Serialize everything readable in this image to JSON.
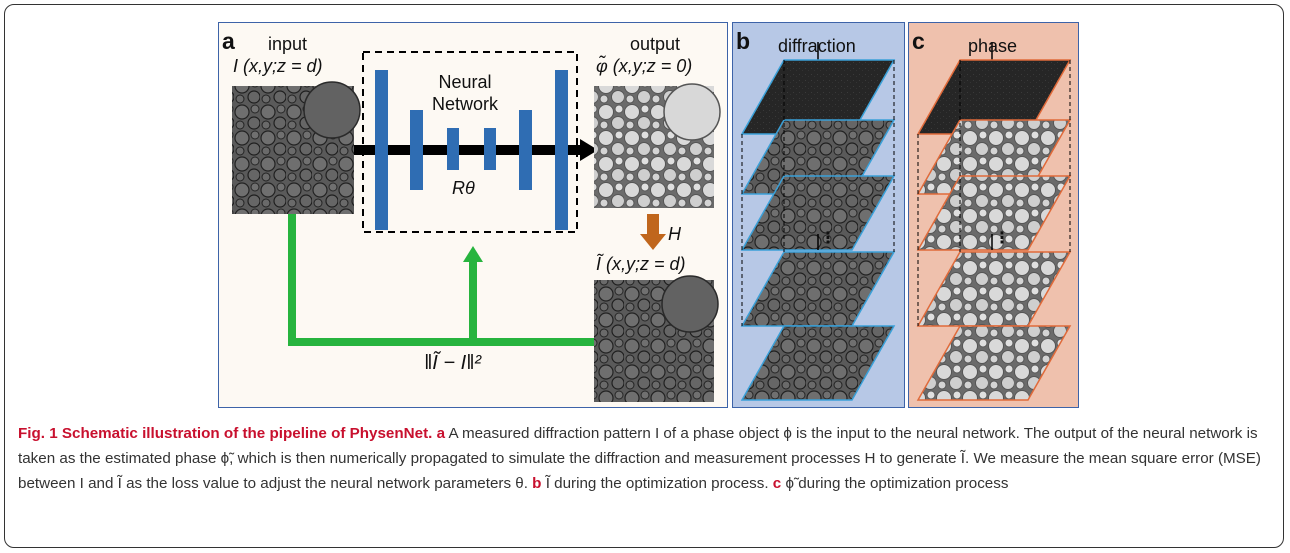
{
  "panels": {
    "a": {
      "letter": "a",
      "input_label": "input",
      "input_expr": "I (x,y;z = d)",
      "network_line1": "Neural",
      "network_line2": "Network",
      "r_label": "Rθ",
      "output_label": "output",
      "output_expr": "φ̃ (x,y;z = 0)",
      "h_label": "H",
      "recon_expr": "Ĩ (x,y;z = d)",
      "loss_expr": "‖Ĩ − I‖²"
    },
    "b": {
      "letter": "b",
      "title": "diffraction",
      "ellipsis": "⋮"
    },
    "c": {
      "letter": "c",
      "title": "phase",
      "ellipsis": "⋮"
    }
  },
  "caption": {
    "title": "Fig. 1 Schematic illustration of the pipeline of PhysenNet.",
    "a_letter": "a",
    "a_text": "A measured diffraction pattern I of a phase object ϕ is the input to the neural network. The output of the neural network is taken as the estimated phase ϕ̃, which is then numerically propagated to simulate the diffraction and measurement processes H to generate Ĩ. We measure the mean square error (MSE) between I and Ĩ as the loss value to adjust the neural network parameters θ.",
    "b_letter": "b",
    "b_text": "Ĩ during the optimization process.",
    "c_letter": "c",
    "c_text": "ϕ̃ during the optimization process"
  },
  "colors": {
    "network_bars": "#2f6db3",
    "flow_arrow": "#000000",
    "feedback": "#27b43e",
    "h_arrow": "#c0661c",
    "panel_a_bg": "#fdf9f3",
    "panel_b_bg": "#b7c8e6",
    "panel_c_bg": "#efc1ad",
    "plane_edge_b": "#3aa0d8",
    "plane_edge_c": "#e06a3a",
    "caption_title": "#c8102e"
  }
}
